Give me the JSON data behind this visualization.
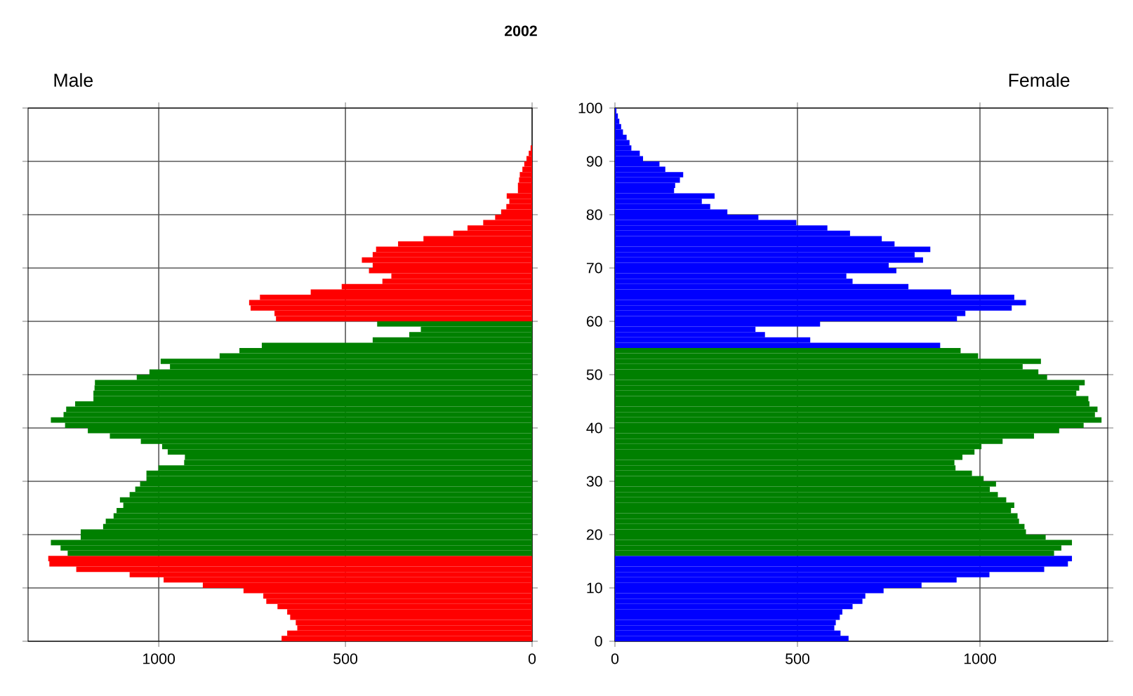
{
  "chart_data": [
    {
      "type": "bar",
      "orientation": "horizontal",
      "title": "2002",
      "subtitle": "Male",
      "x": [
        0.5,
        1.5,
        2.5,
        3.5,
        4.5,
        5.5,
        6.5,
        7.5,
        8.5,
        9.5,
        10.5,
        11.5,
        12.5,
        13.5,
        14.5,
        15.5,
        16.5,
        17.5,
        18.5,
        19.5,
        20.5,
        21.5,
        22.5,
        23.5,
        24.5,
        25.5,
        26.5,
        27.5,
        28.5,
        29.5,
        30.5,
        31.5,
        32.5,
        33.5,
        34.5,
        35.5,
        36.5,
        37.5,
        38.5,
        39.5,
        40.5,
        41.5,
        42.5,
        43.5,
        44.5,
        45.5,
        46.5,
        47.5,
        48.5,
        49.5,
        50.5,
        51.5,
        52.5,
        53.5,
        54.5,
        55.5,
        56.5,
        57.5,
        58.5,
        59.5,
        60.5,
        61.5,
        62.5,
        63.5,
        64.5,
        65.5,
        66.5,
        67.5,
        68.5,
        69.5,
        70.5,
        71.5,
        72.5,
        73.5,
        74.5,
        75.5,
        76.5,
        77.5,
        78.5,
        79.5,
        80.5,
        81.5,
        82.5,
        83.5,
        84.5,
        85.5,
        86.5,
        87.5,
        88.5,
        89.5,
        90.5,
        91.5,
        92.5,
        93.5,
        94.5,
        95.5,
        96.5,
        97.5,
        98.5,
        99.5
      ],
      "values": [
        671,
        656,
        629,
        633,
        648,
        656,
        682,
        712,
        720,
        773,
        882,
        987,
        1078,
        1221,
        1293,
        1296,
        1244,
        1263,
        1289,
        1209,
        1209,
        1149,
        1142,
        1121,
        1113,
        1095,
        1104,
        1078,
        1063,
        1050,
        1033,
        1033,
        1001,
        932,
        930,
        976,
        991,
        1048,
        1131,
        1190,
        1251,
        1289,
        1255,
        1248,
        1224,
        1175,
        1175,
        1172,
        1171,
        1059,
        1025,
        970,
        995,
        837,
        784,
        724,
        427,
        329,
        298,
        415,
        686,
        690,
        754,
        758,
        729,
        593,
        510,
        401,
        377,
        437,
        427,
        456,
        427,
        418,
        359,
        291,
        211,
        173,
        131,
        99,
        83,
        69,
        61,
        68,
        38,
        38,
        35,
        33,
        26,
        21,
        15,
        9,
        4,
        0,
        0,
        0,
        0,
        0,
        0,
        0
      ],
      "colors": [
        "#ff0000",
        "#ff0000",
        "#ff0000",
        "#ff0000",
        "#ff0000",
        "#ff0000",
        "#ff0000",
        "#ff0000",
        "#ff0000",
        "#ff0000",
        "#ff0000",
        "#ff0000",
        "#ff0000",
        "#ff0000",
        "#ff0000",
        "#ff0000",
        "#008000",
        "#008000",
        "#008000",
        "#008000",
        "#008000",
        "#008000",
        "#008000",
        "#008000",
        "#008000",
        "#008000",
        "#008000",
        "#008000",
        "#008000",
        "#008000",
        "#008000",
        "#008000",
        "#008000",
        "#008000",
        "#008000",
        "#008000",
        "#008000",
        "#008000",
        "#008000",
        "#008000",
        "#008000",
        "#008000",
        "#008000",
        "#008000",
        "#008000",
        "#008000",
        "#008000",
        "#008000",
        "#008000",
        "#008000",
        "#008000",
        "#008000",
        "#008000",
        "#008000",
        "#008000",
        "#008000",
        "#008000",
        "#008000",
        "#008000",
        "#008000",
        "#ff0000",
        "#ff0000",
        "#ff0000",
        "#ff0000",
        "#ff0000",
        "#ff0000",
        "#ff0000",
        "#ff0000",
        "#ff0000",
        "#ff0000",
        "#ff0000",
        "#ff0000",
        "#ff0000",
        "#ff0000",
        "#ff0000",
        "#ff0000",
        "#ff0000",
        "#ff0000",
        "#ff0000",
        "#ff0000",
        "#ff0000",
        "#ff0000",
        "#ff0000",
        "#ff0000",
        "#ff0000",
        "#ff0000",
        "#ff0000",
        "#ff0000",
        "#ff0000",
        "#ff0000",
        "#ff0000",
        "#ff0000",
        "#ff0000",
        "#ff0000",
        "#ff0000",
        "#ff0000",
        "#ff0000",
        "#ff0000",
        "#ff0000",
        "#ff0000"
      ],
      "xlim": [
        1350,
        0
      ],
      "xticks": [
        1000,
        500,
        0
      ],
      "ylim": [
        0,
        100
      ],
      "yticks": [
        0,
        10,
        20,
        30,
        40,
        50,
        60,
        70,
        80,
        90,
        100
      ],
      "tick_labels": "x",
      "grid": true
    },
    {
      "type": "bar",
      "orientation": "horizontal",
      "subtitle": "Female",
      "x": [
        0.5,
        1.5,
        2.5,
        3.5,
        4.5,
        5.5,
        6.5,
        7.5,
        8.5,
        9.5,
        10.5,
        11.5,
        12.5,
        13.5,
        14.5,
        15.5,
        16.5,
        17.5,
        18.5,
        19.5,
        20.5,
        21.5,
        22.5,
        23.5,
        24.5,
        25.5,
        26.5,
        27.5,
        28.5,
        29.5,
        30.5,
        31.5,
        32.5,
        33.5,
        34.5,
        35.5,
        36.5,
        37.5,
        38.5,
        39.5,
        40.5,
        41.5,
        42.5,
        43.5,
        44.5,
        45.5,
        46.5,
        47.5,
        48.5,
        49.5,
        50.5,
        51.5,
        52.5,
        53.5,
        54.5,
        55.5,
        56.5,
        57.5,
        58.5,
        59.5,
        60.5,
        61.5,
        62.5,
        63.5,
        64.5,
        65.5,
        66.5,
        67.5,
        68.5,
        69.5,
        70.5,
        71.5,
        72.5,
        73.5,
        74.5,
        75.5,
        76.5,
        77.5,
        78.5,
        79.5,
        80.5,
        81.5,
        82.5,
        83.5,
        84.5,
        85.5,
        86.5,
        87.5,
        88.5,
        89.5,
        90.5,
        91.5,
        92.5,
        93.5,
        94.5,
        95.5,
        96.5,
        97.5,
        98.5,
        99.5
      ],
      "values": [
        640,
        618,
        601,
        605,
        616,
        623,
        651,
        678,
        686,
        736,
        840,
        936,
        1026,
        1176,
        1241,
        1252,
        1203,
        1223,
        1252,
        1180,
        1126,
        1122,
        1107,
        1103,
        1085,
        1094,
        1072,
        1049,
        1027,
        1044,
        1010,
        978,
        933,
        930,
        952,
        985,
        1004,
        1062,
        1148,
        1217,
        1284,
        1333,
        1315,
        1322,
        1300,
        1297,
        1264,
        1272,
        1287,
        1184,
        1160,
        1117,
        1167,
        995,
        947,
        891,
        535,
        411,
        385,
        562,
        937,
        960,
        1087,
        1126,
        1094,
        921,
        804,
        651,
        634,
        771,
        750,
        844,
        821,
        864,
        766,
        731,
        644,
        582,
        497,
        393,
        308,
        261,
        238,
        273,
        162,
        165,
        178,
        187,
        138,
        122,
        77,
        68,
        45,
        40,
        32,
        22,
        17,
        12,
        8,
        4
      ],
      "colors": [
        "#0000ff",
        "#0000ff",
        "#0000ff",
        "#0000ff",
        "#0000ff",
        "#0000ff",
        "#0000ff",
        "#0000ff",
        "#0000ff",
        "#0000ff",
        "#0000ff",
        "#0000ff",
        "#0000ff",
        "#0000ff",
        "#0000ff",
        "#0000ff",
        "#008000",
        "#008000",
        "#008000",
        "#008000",
        "#008000",
        "#008000",
        "#008000",
        "#008000",
        "#008000",
        "#008000",
        "#008000",
        "#008000",
        "#008000",
        "#008000",
        "#008000",
        "#008000",
        "#008000",
        "#008000",
        "#008000",
        "#008000",
        "#008000",
        "#008000",
        "#008000",
        "#008000",
        "#008000",
        "#008000",
        "#008000",
        "#008000",
        "#008000",
        "#008000",
        "#008000",
        "#008000",
        "#008000",
        "#008000",
        "#008000",
        "#008000",
        "#008000",
        "#008000",
        "#008000",
        "#0000ff",
        "#0000ff",
        "#0000ff",
        "#0000ff",
        "#0000ff",
        "#0000ff",
        "#0000ff",
        "#0000ff",
        "#0000ff",
        "#0000ff",
        "#0000ff",
        "#0000ff",
        "#0000ff",
        "#0000ff",
        "#0000ff",
        "#0000ff",
        "#0000ff",
        "#0000ff",
        "#0000ff",
        "#0000ff",
        "#0000ff",
        "#0000ff",
        "#0000ff",
        "#0000ff",
        "#0000ff",
        "#0000ff",
        "#0000ff",
        "#0000ff",
        "#0000ff",
        "#0000ff",
        "#0000ff",
        "#0000ff",
        "#0000ff",
        "#0000ff",
        "#0000ff",
        "#0000ff",
        "#0000ff",
        "#0000ff",
        "#0000ff",
        "#0000ff",
        "#0000ff",
        "#0000ff",
        "#0000ff",
        "#0000ff",
        "#0000ff"
      ],
      "xlim": [
        0,
        1350
      ],
      "xticks": [
        0,
        500,
        1000
      ],
      "ylim": [
        0,
        100
      ],
      "yticks": [
        0,
        10,
        20,
        30,
        40,
        50,
        60,
        70,
        80,
        90,
        100
      ],
      "grid": true
    }
  ]
}
